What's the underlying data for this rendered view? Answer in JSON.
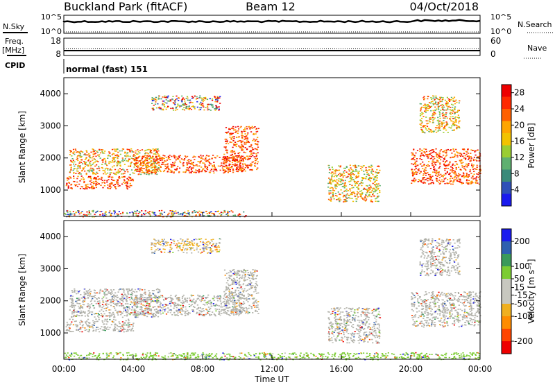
{
  "header": {
    "station": "Buckland Park (fitACF)",
    "beam": "Beam 12",
    "date": "04/Oct/2018"
  },
  "strip": {
    "nsky_label": "N.Sky",
    "nsearch_label": "N.Search",
    "freq_label_1": "Freq.",
    "freq_label_2": "[MHz]",
    "nave_label": "Nave",
    "cpid_label": "CPID",
    "cpid_text": "normal (fast) 151",
    "nsky_ticks": [
      "10^5",
      "10^0"
    ],
    "nsearch_ticks": [
      "10^5",
      "10^0"
    ],
    "freq_ticks": [
      "18",
      "8"
    ],
    "nave_ticks": [
      "60",
      "0"
    ]
  },
  "colors": {
    "power_scale": [
      "#1a1aee",
      "#2f50b8",
      "#3a8a7a",
      "#5fb070",
      "#9acd32",
      "#f2c200",
      "#ffa500",
      "#ff6000",
      "#ff2a00",
      "#ee0000"
    ],
    "velocity_scale": [
      "#ee0000",
      "#ff4500",
      "#ff8c00",
      "#f0b020",
      "#c8c8c0",
      "#c8c8c0",
      "#7ccc33",
      "#3a9a5a",
      "#2f60b0",
      "#1a1aee"
    ],
    "ground_scatter": "#b0b0a8"
  },
  "chart_data": [
    {
      "type": "heatmap",
      "panel": "power",
      "xlabel": "",
      "ylabel": "Slant Range [km]",
      "xlim": [
        "00:00",
        "24:00"
      ],
      "ylim": [
        180,
        4500
      ],
      "x_ticks": [
        "00:00",
        "04:00",
        "08:00",
        "12:00",
        "16:00",
        "20:00",
        "00:00"
      ],
      "y_ticks": [
        1000,
        2000,
        3000,
        4000
      ],
      "colorbar": {
        "label": "Power [dB]",
        "ticks": [
          4,
          8,
          12,
          16,
          20,
          24,
          28
        ],
        "range": [
          0,
          30
        ]
      },
      "regions": [
        {
          "t0": 0.0,
          "t1": 10.5,
          "r0": 180,
          "r1": 380,
          "level": "mixed"
        },
        {
          "t0": 0.1,
          "t1": 4.0,
          "r0": 1050,
          "r1": 1450,
          "level": "high"
        },
        {
          "t0": 0.3,
          "t1": 5.5,
          "r0": 1500,
          "r1": 2300,
          "level": "mid"
        },
        {
          "t0": 4.0,
          "t1": 10.3,
          "r0": 1550,
          "r1": 2100,
          "level": "high"
        },
        {
          "t0": 9.2,
          "t1": 11.2,
          "r0": 1600,
          "r1": 3000,
          "level": "high"
        },
        {
          "t0": 5.0,
          "t1": 9.0,
          "r0": 3500,
          "r1": 3950,
          "level": "mixed"
        },
        {
          "t0": 15.2,
          "t1": 18.2,
          "r0": 650,
          "r1": 1800,
          "level": "mid"
        },
        {
          "t0": 20.0,
          "t1": 24.0,
          "r0": 1200,
          "r1": 2300,
          "level": "high"
        },
        {
          "t0": 20.5,
          "t1": 22.8,
          "r0": 2800,
          "r1": 3950,
          "level": "mid"
        }
      ]
    },
    {
      "type": "heatmap",
      "panel": "velocity",
      "xlabel": "Time UT",
      "ylabel": "Slant Range [km]",
      "xlim": [
        "00:00",
        "24:00"
      ],
      "ylim": [
        180,
        4500
      ],
      "x_ticks": [
        "00:00",
        "04:00",
        "08:00",
        "12:00",
        "16:00",
        "20:00",
        "00:00"
      ],
      "y_ticks": [
        1000,
        2000,
        3000,
        4000
      ],
      "colorbar": {
        "label": "Velocity [m s⁻¹]",
        "ticks": [
          -200,
          -100,
          -50,
          -15,
          15,
          50,
          100,
          200
        ],
        "range": [
          -250,
          250
        ]
      },
      "regions": [
        {
          "t0": 0.0,
          "t1": 24.0,
          "r0": 180,
          "r1": 400,
          "level": "green"
        },
        {
          "t0": 0.1,
          "t1": 4.0,
          "r0": 1050,
          "r1": 1450,
          "level": "gray"
        },
        {
          "t0": 0.3,
          "t1": 5.5,
          "r0": 1500,
          "r1": 2400,
          "level": "gray"
        },
        {
          "t0": 4.0,
          "t1": 10.3,
          "r0": 1550,
          "r1": 2200,
          "level": "gray"
        },
        {
          "t0": 9.2,
          "t1": 11.2,
          "r0": 1600,
          "r1": 3000,
          "level": "gray"
        },
        {
          "t0": 5.0,
          "t1": 9.0,
          "r0": 3500,
          "r1": 3950,
          "level": "yellow"
        },
        {
          "t0": 15.2,
          "t1": 18.2,
          "r0": 700,
          "r1": 1800,
          "level": "gray"
        },
        {
          "t0": 20.0,
          "t1": 24.0,
          "r0": 1200,
          "r1": 2300,
          "level": "gray"
        },
        {
          "t0": 20.5,
          "t1": 22.8,
          "r0": 2800,
          "r1": 3950,
          "level": "gray"
        }
      ]
    }
  ]
}
